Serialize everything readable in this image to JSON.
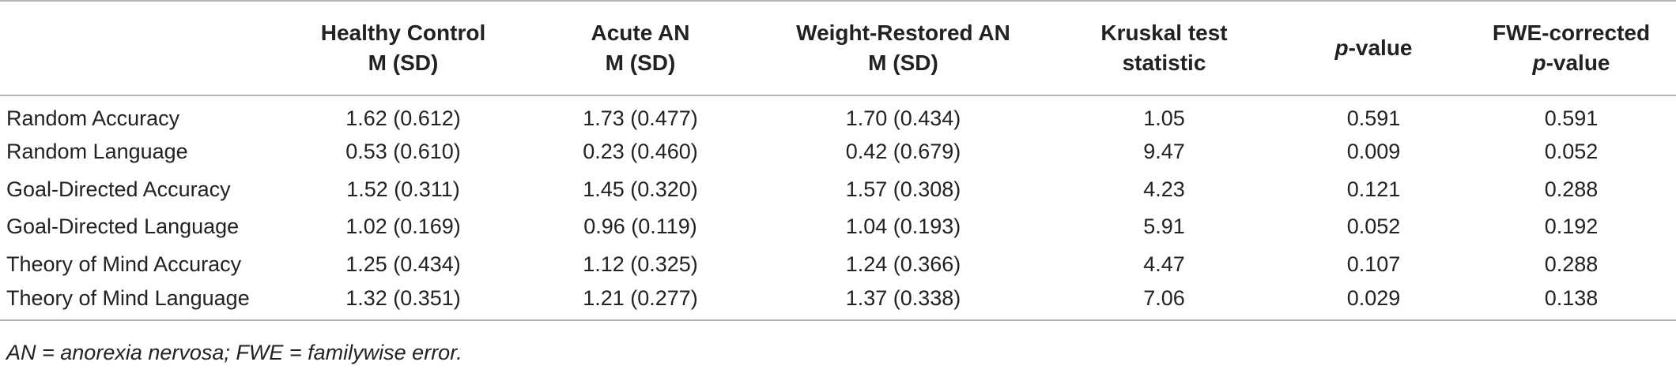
{
  "table": {
    "headers": [
      {
        "line1": "",
        "line2": ""
      },
      {
        "line1": "Healthy Control",
        "line2": "M (SD)"
      },
      {
        "line1": "Acute AN",
        "line2": "M (SD)"
      },
      {
        "line1": "Weight-Restored AN",
        "line2": "M (SD)"
      },
      {
        "line1": "Kruskal test",
        "line2": "statistic"
      },
      {
        "line1_italic": "p",
        "line1_rest": "-value",
        "line2": ""
      },
      {
        "line1": "FWE-corrected",
        "line2_italic": "p",
        "line2_rest": "-value"
      }
    ],
    "rows": [
      {
        "label": "Random Accuracy",
        "hc": "1.62 (0.612)",
        "acute": "1.73 (0.477)",
        "wr": "1.70 (0.434)",
        "kruskal": "1.05",
        "p": "0.591",
        "fwe": "0.591"
      },
      {
        "label": "Random Language",
        "hc": "0.53 (0.610)",
        "acute": "0.23 (0.460)",
        "wr": "0.42 (0.679)",
        "kruskal": "9.47",
        "p": "0.009",
        "fwe": "0.052"
      },
      {
        "label": "Goal-Directed Accuracy",
        "hc": "1.52 (0.311)",
        "acute": "1.45 (0.320)",
        "wr": "1.57 (0.308)",
        "kruskal": "4.23",
        "p": "0.121",
        "fwe": "0.288"
      },
      {
        "label": "Goal-Directed Language",
        "hc": "1.02 (0.169)",
        "acute": "0.96 (0.119)",
        "wr": "1.04 (0.193)",
        "kruskal": "5.91",
        "p": "0.052",
        "fwe": "0.192"
      },
      {
        "label": "Theory of Mind Accuracy",
        "hc": "1.25 (0.434)",
        "acute": "1.12 (0.325)",
        "wr": "1.24 (0.366)",
        "kruskal": "4.47",
        "p": "0.107",
        "fwe": "0.288"
      },
      {
        "label": "Theory of Mind Language",
        "hc": "1.32 (0.351)",
        "acute": "1.21 (0.277)",
        "wr": "1.37 (0.338)",
        "kruskal": "7.06",
        "p": "0.029",
        "fwe": "0.138"
      }
    ]
  },
  "footnote": "AN = anorexia nervosa; FWE = familywise error."
}
